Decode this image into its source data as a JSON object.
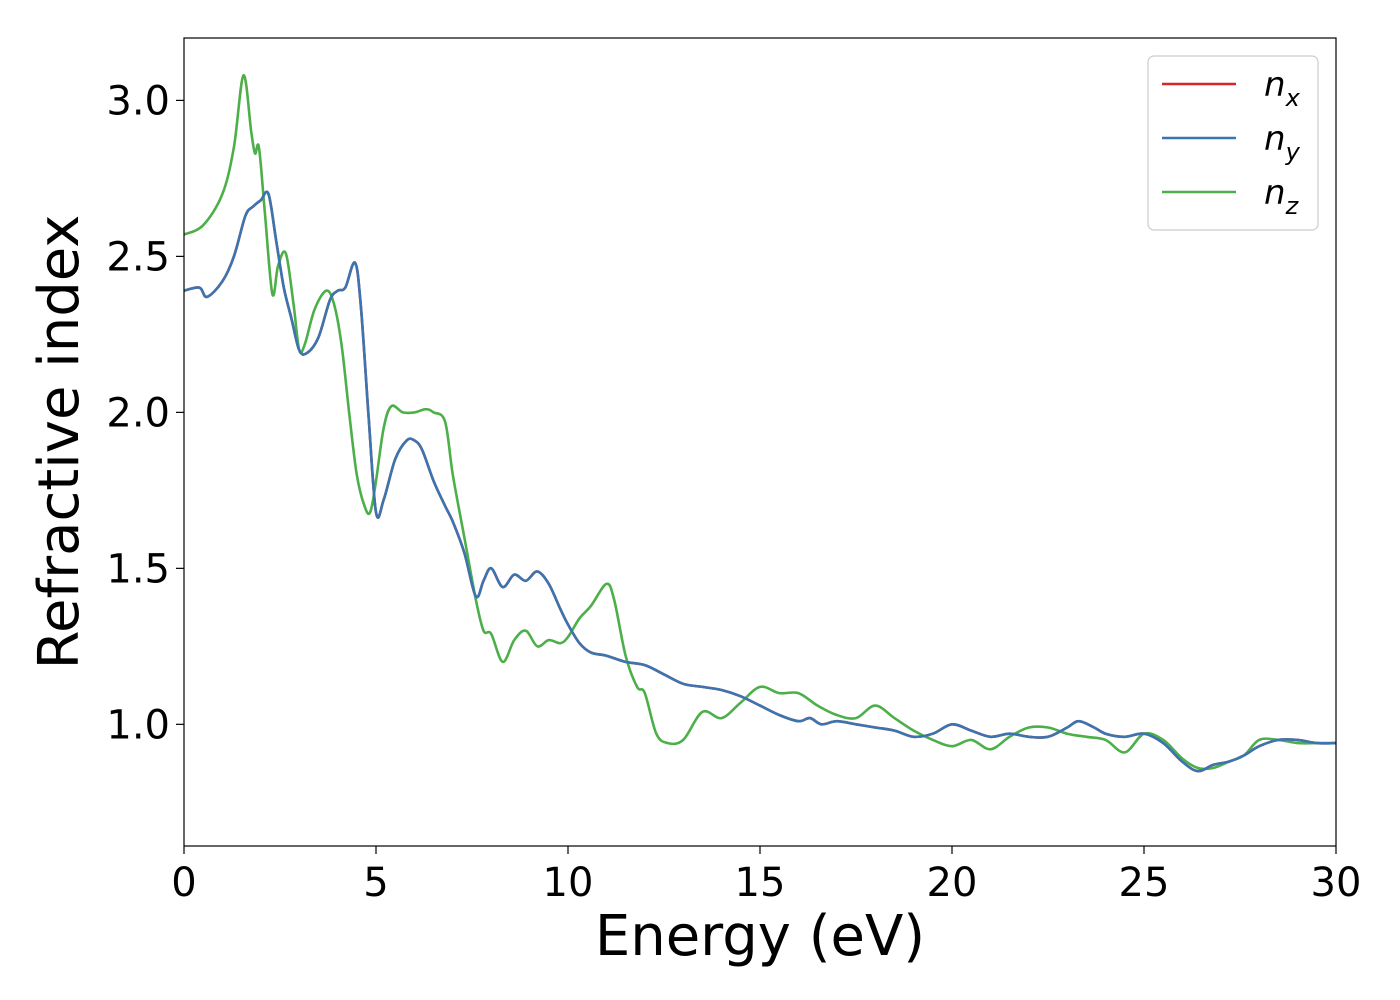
{
  "chart_data": {
    "type": "line",
    "title": "",
    "xlabel": "Energy (eV)",
    "ylabel": "Refractive index",
    "xlim": [
      0,
      30
    ],
    "ylim": [
      0.61,
      3.2
    ],
    "xticks": [
      0,
      5,
      10,
      15,
      20,
      25,
      30
    ],
    "xtick_labels": [
      "0",
      "5",
      "10",
      "15",
      "20",
      "25",
      "30"
    ],
    "yticks": [
      1.0,
      1.5,
      2.0,
      2.5,
      3.0
    ],
    "ytick_labels": [
      "1.0",
      "1.5",
      "2.0",
      "2.5",
      "3.0"
    ],
    "grid": false,
    "legend_position": "top-right",
    "series": [
      {
        "name": "n",
        "subscript": "x",
        "color": "#d62728",
        "x": [
          0,
          0.4,
          0.6,
          1.0,
          1.3,
          1.6,
          1.8,
          2.0,
          2.2,
          2.4,
          2.6,
          2.8,
          3.0,
          3.2,
          3.5,
          3.8,
          4.0,
          4.2,
          4.45,
          4.6,
          4.8,
          5.0,
          5.2,
          5.5,
          5.8,
          6.0,
          6.2,
          6.5,
          6.8,
          7.0,
          7.3,
          7.6,
          7.8,
          8.0,
          8.3,
          8.6,
          8.9,
          9.2,
          9.5,
          9.8,
          10.0,
          10.3,
          10.6,
          11.0,
          11.5,
          12.0,
          12.5,
          13.0,
          13.5,
          14.0,
          14.5,
          15.0,
          15.5,
          16.0,
          16.3,
          16.6,
          17.0,
          17.5,
          18.0,
          18.5,
          19.0,
          19.5,
          20.0,
          20.5,
          21.0,
          21.5,
          22.0,
          22.5,
          23.0,
          23.3,
          23.7,
          24.0,
          24.5,
          25.0,
          25.5,
          26.0,
          26.4,
          26.8,
          27.2,
          27.6,
          28.0,
          28.5,
          29.0,
          29.5,
          30.0
        ],
        "y": [
          2.39,
          2.4,
          2.37,
          2.42,
          2.5,
          2.63,
          2.66,
          2.68,
          2.7,
          2.55,
          2.4,
          2.3,
          2.2,
          2.19,
          2.24,
          2.36,
          2.39,
          2.4,
          2.48,
          2.35,
          2.0,
          1.68,
          1.72,
          1.85,
          1.91,
          1.91,
          1.88,
          1.78,
          1.7,
          1.65,
          1.55,
          1.41,
          1.46,
          1.5,
          1.44,
          1.48,
          1.46,
          1.49,
          1.45,
          1.37,
          1.32,
          1.26,
          1.23,
          1.22,
          1.2,
          1.19,
          1.16,
          1.13,
          1.12,
          1.11,
          1.09,
          1.06,
          1.03,
          1.01,
          1.02,
          1.0,
          1.01,
          1.0,
          0.99,
          0.98,
          0.96,
          0.97,
          1.0,
          0.98,
          0.96,
          0.97,
          0.96,
          0.96,
          0.99,
          1.01,
          0.99,
          0.97,
          0.96,
          0.97,
          0.94,
          0.88,
          0.85,
          0.87,
          0.88,
          0.9,
          0.93,
          0.95,
          0.95,
          0.94,
          0.94
        ]
      },
      {
        "name": "n",
        "subscript": "y",
        "color": "#3a75b0",
        "x": [
          0,
          0.4,
          0.6,
          1.0,
          1.3,
          1.6,
          1.8,
          2.0,
          2.2,
          2.4,
          2.6,
          2.8,
          3.0,
          3.2,
          3.5,
          3.8,
          4.0,
          4.2,
          4.45,
          4.6,
          4.8,
          5.0,
          5.2,
          5.5,
          5.8,
          6.0,
          6.2,
          6.5,
          6.8,
          7.0,
          7.3,
          7.6,
          7.8,
          8.0,
          8.3,
          8.6,
          8.9,
          9.2,
          9.5,
          9.8,
          10.0,
          10.3,
          10.6,
          11.0,
          11.5,
          12.0,
          12.5,
          13.0,
          13.5,
          14.0,
          14.5,
          15.0,
          15.5,
          16.0,
          16.3,
          16.6,
          17.0,
          17.5,
          18.0,
          18.5,
          19.0,
          19.5,
          20.0,
          20.5,
          21.0,
          21.5,
          22.0,
          22.5,
          23.0,
          23.3,
          23.7,
          24.0,
          24.5,
          25.0,
          25.5,
          26.0,
          26.4,
          26.8,
          27.2,
          27.6,
          28.0,
          28.5,
          29.0,
          29.5,
          30.0
        ],
        "y": [
          2.39,
          2.4,
          2.37,
          2.42,
          2.5,
          2.63,
          2.66,
          2.68,
          2.7,
          2.55,
          2.4,
          2.3,
          2.2,
          2.19,
          2.24,
          2.36,
          2.39,
          2.4,
          2.48,
          2.35,
          2.0,
          1.68,
          1.72,
          1.85,
          1.91,
          1.91,
          1.88,
          1.78,
          1.7,
          1.65,
          1.55,
          1.41,
          1.46,
          1.5,
          1.44,
          1.48,
          1.46,
          1.49,
          1.45,
          1.37,
          1.32,
          1.26,
          1.23,
          1.22,
          1.2,
          1.19,
          1.16,
          1.13,
          1.12,
          1.11,
          1.09,
          1.06,
          1.03,
          1.01,
          1.02,
          1.0,
          1.01,
          1.0,
          0.99,
          0.98,
          0.96,
          0.97,
          1.0,
          0.98,
          0.96,
          0.97,
          0.96,
          0.96,
          0.99,
          1.01,
          0.99,
          0.97,
          0.96,
          0.97,
          0.94,
          0.88,
          0.85,
          0.87,
          0.88,
          0.9,
          0.93,
          0.95,
          0.95,
          0.94,
          0.94
        ]
      },
      {
        "name": "n",
        "subscript": "z",
        "color": "#4daf4a",
        "x": [
          0,
          0.5,
          1.0,
          1.3,
          1.55,
          1.75,
          1.85,
          1.95,
          2.1,
          2.3,
          2.45,
          2.65,
          2.85,
          3.0,
          3.15,
          3.4,
          3.7,
          3.9,
          4.1,
          4.3,
          4.5,
          4.7,
          4.85,
          5.0,
          5.2,
          5.4,
          5.7,
          6.0,
          6.3,
          6.5,
          6.8,
          7.0,
          7.3,
          7.6,
          7.8,
          8.0,
          8.3,
          8.6,
          8.9,
          9.2,
          9.5,
          9.8,
          10.0,
          10.3,
          10.6,
          11.0,
          11.2,
          11.5,
          11.8,
          12.0,
          12.3,
          12.6,
          13.0,
          13.5,
          14.0,
          14.5,
          15.0,
          15.5,
          16.0,
          16.5,
          17.0,
          17.5,
          18.0,
          18.5,
          19.0,
          19.5,
          20.0,
          20.5,
          21.0,
          21.5,
          22.0,
          22.5,
          23.0,
          23.5,
          24.0,
          24.5,
          25.0,
          25.5,
          26.0,
          26.4,
          26.8,
          27.2,
          27.6,
          28.0,
          28.5,
          29.0,
          29.5,
          30.0
        ],
        "y": [
          2.57,
          2.6,
          2.7,
          2.85,
          3.08,
          2.9,
          2.83,
          2.85,
          2.65,
          2.38,
          2.47,
          2.51,
          2.35,
          2.2,
          2.22,
          2.33,
          2.39,
          2.35,
          2.22,
          2.0,
          1.8,
          1.7,
          1.68,
          1.78,
          1.95,
          2.02,
          2.0,
          2.0,
          2.01,
          2.0,
          1.97,
          1.8,
          1.6,
          1.4,
          1.3,
          1.29,
          1.2,
          1.27,
          1.3,
          1.25,
          1.27,
          1.26,
          1.28,
          1.34,
          1.38,
          1.45,
          1.4,
          1.22,
          1.12,
          1.1,
          0.97,
          0.94,
          0.95,
          1.04,
          1.02,
          1.07,
          1.12,
          1.1,
          1.1,
          1.06,
          1.03,
          1.02,
          1.06,
          1.02,
          0.98,
          0.95,
          0.93,
          0.95,
          0.92,
          0.96,
          0.99,
          0.99,
          0.97,
          0.96,
          0.95,
          0.91,
          0.97,
          0.95,
          0.89,
          0.86,
          0.86,
          0.88,
          0.9,
          0.95,
          0.95,
          0.94,
          0.94,
          0.94
        ]
      }
    ]
  }
}
